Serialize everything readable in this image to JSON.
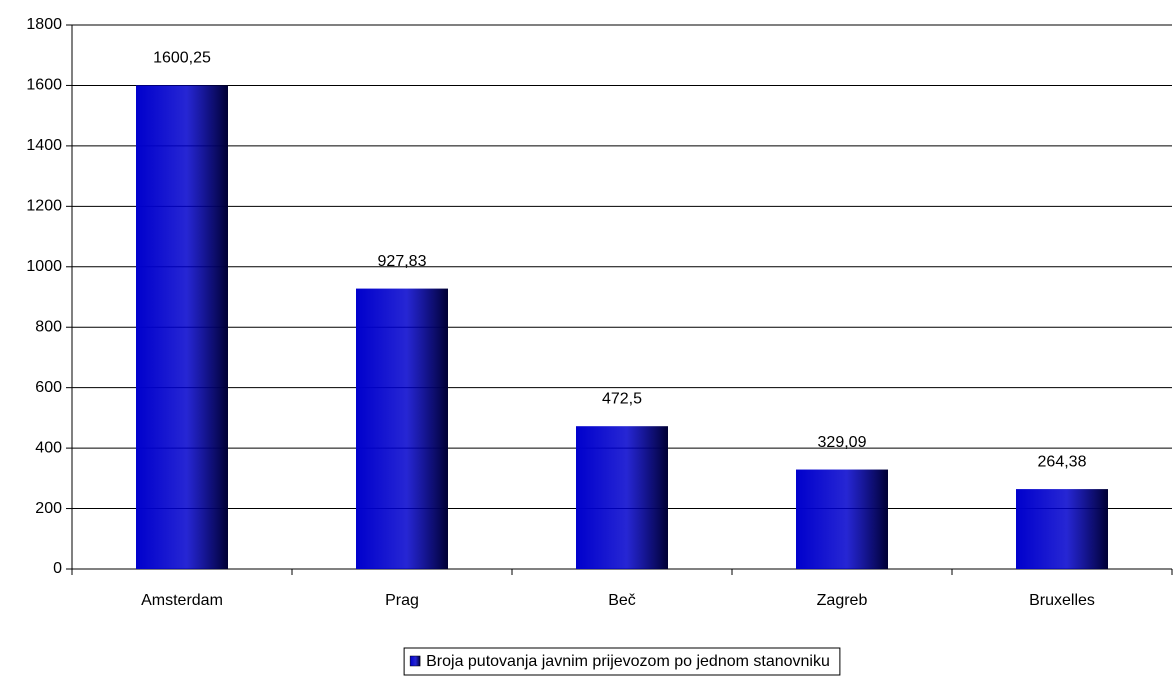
{
  "chart_data": {
    "type": "bar",
    "categories": [
      "Amsterdam",
      "Prag",
      "Beč",
      "Zagreb",
      "Bruxelles"
    ],
    "series": [
      {
        "name": "Broja putovanja javnim prijevozom po jednom stanovniku",
        "color": "#0000cc",
        "values": [
          1600.25,
          927.83,
          472.5,
          329.09,
          264.38
        ],
        "value_labels": [
          "1600,25",
          "927,83",
          "472,5",
          "329,09",
          "264,38"
        ]
      }
    ],
    "ylim": [
      0,
      1800
    ],
    "yticks": [
      0,
      200,
      400,
      600,
      800,
      1000,
      1200,
      1400,
      1600,
      1800
    ],
    "grid": true,
    "legend": "bottom"
  }
}
